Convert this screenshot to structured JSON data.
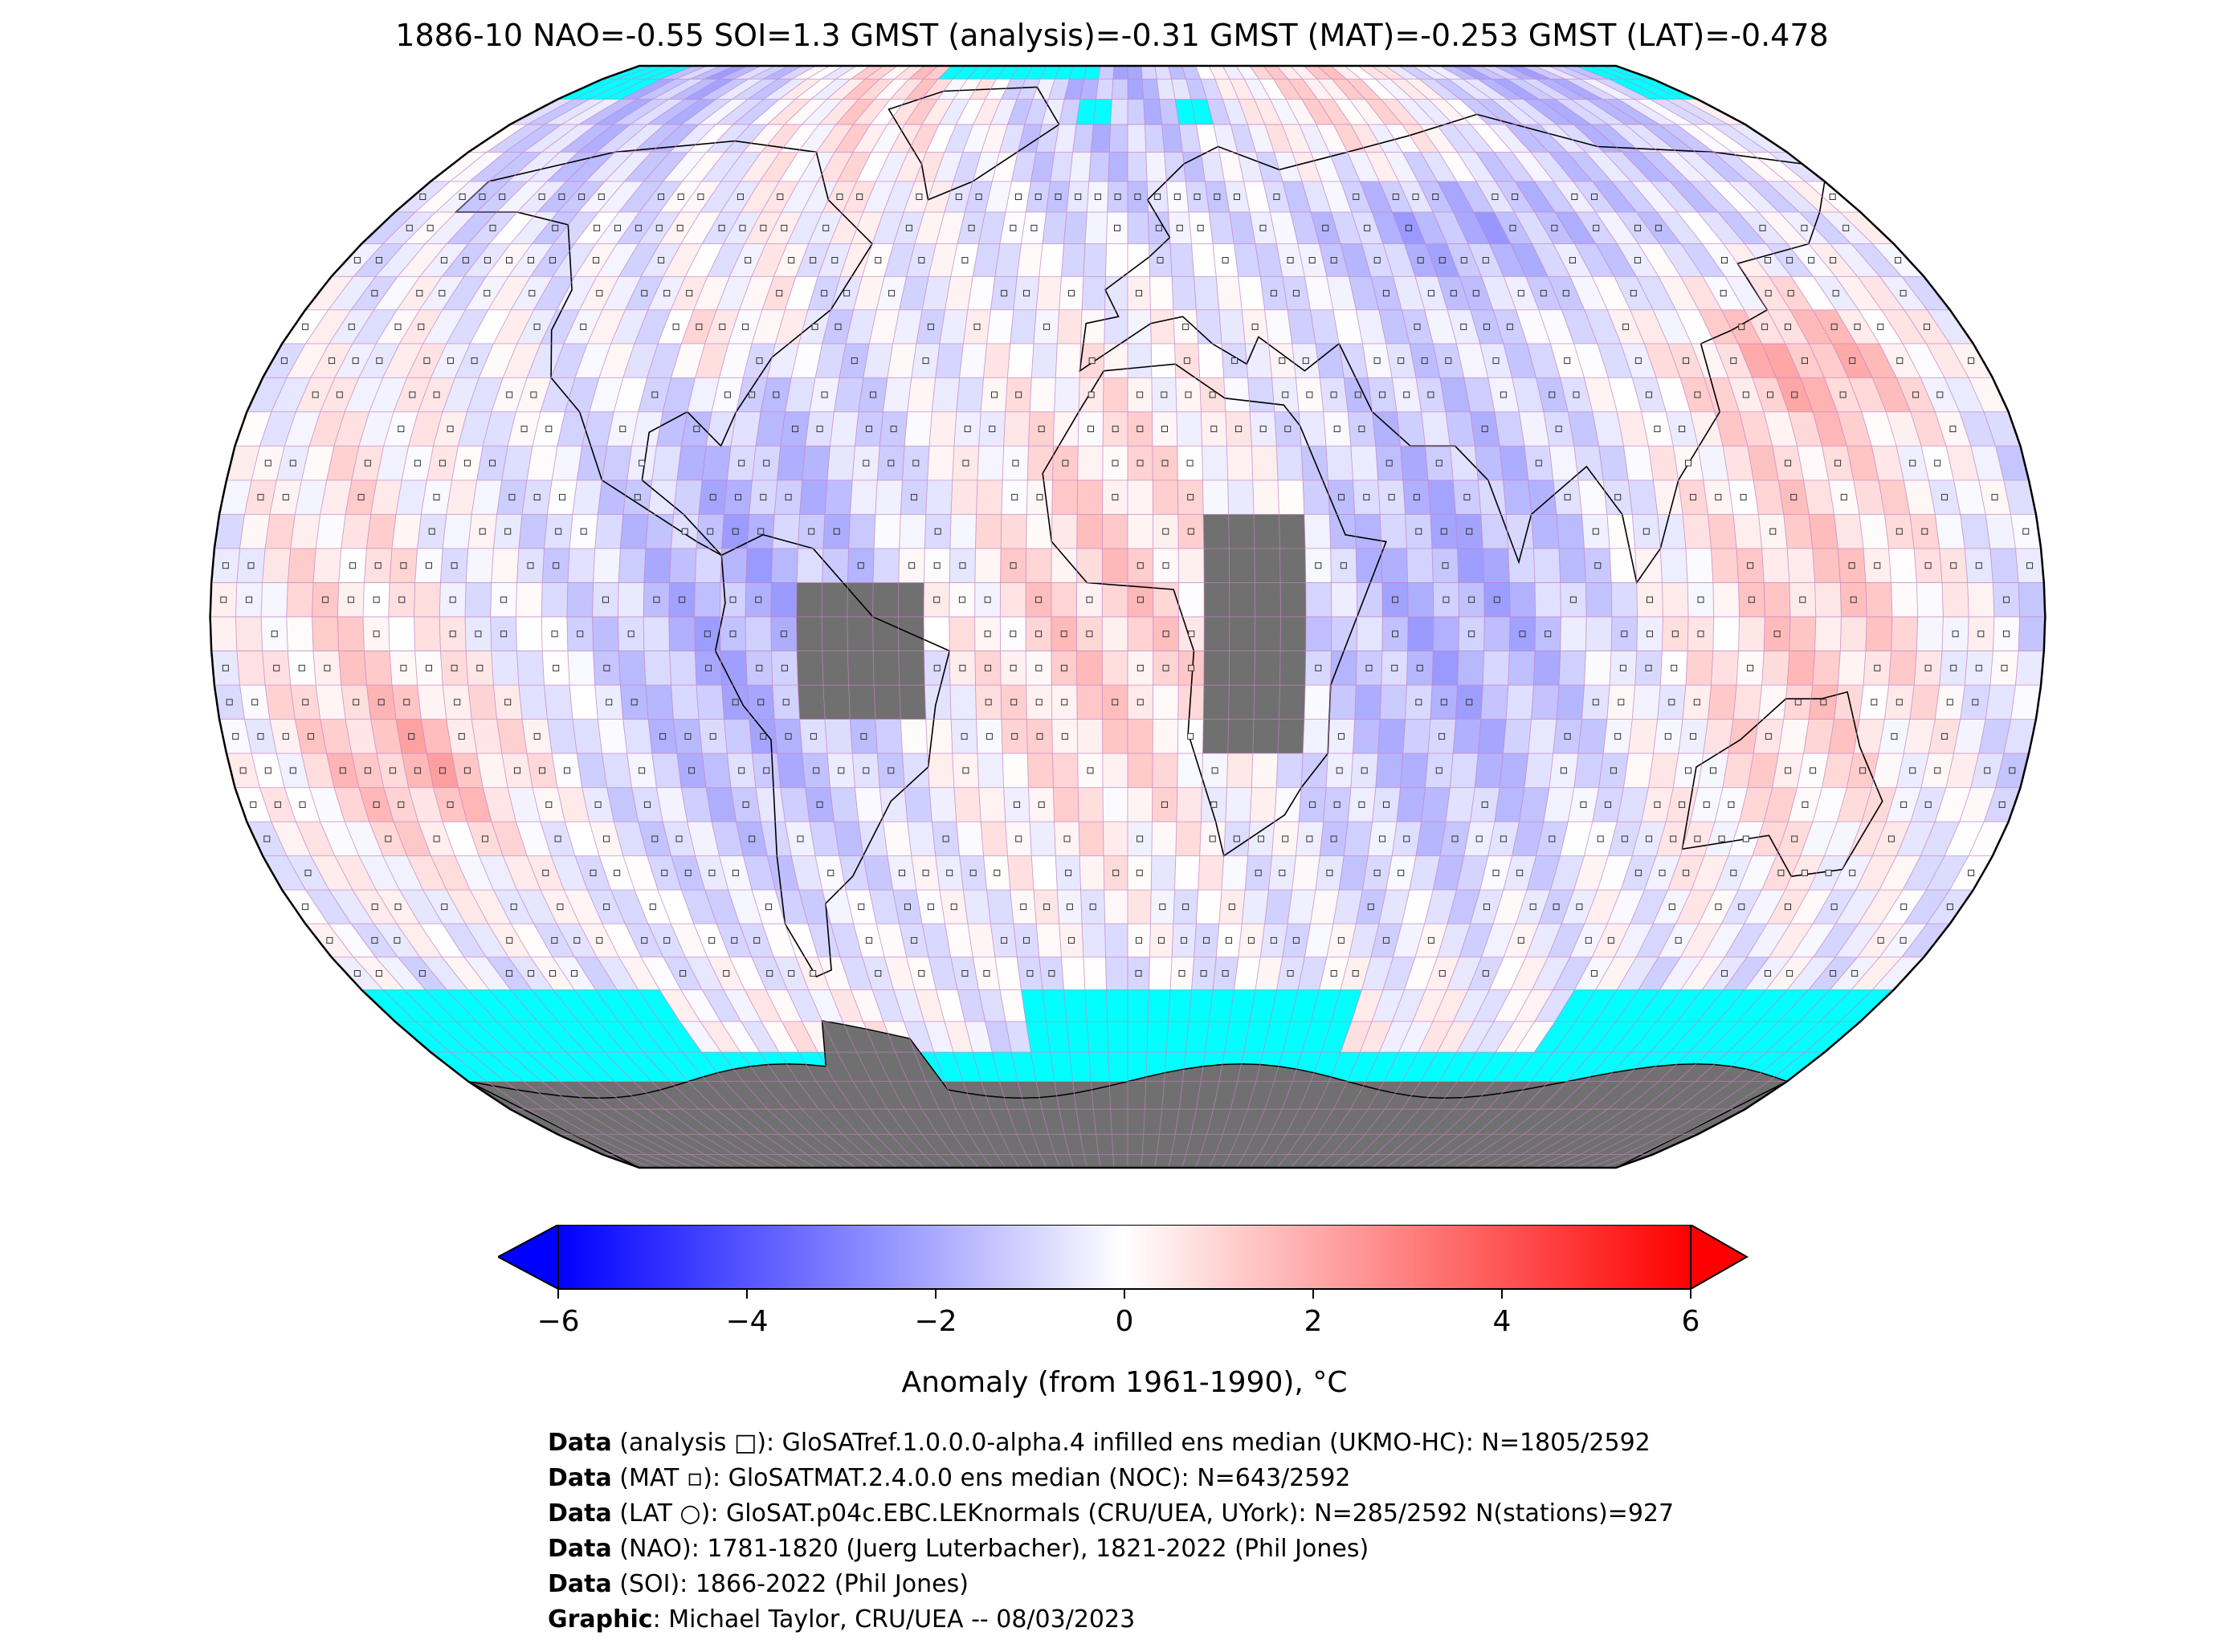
{
  "title": "1886-10 NAO=-0.55 SOI=1.3 GMST (analysis)=-0.31 GMST (MAT)=-0.253 GMST (LAT)=-0.478",
  "colors": {
    "ocean_nodata": "#00ffff",
    "land_nodata": "#707070",
    "cmap_min": "#0000ff",
    "cmap_mid": "#ffffff",
    "cmap_max": "#ff0000",
    "grid": "#c080c0",
    "coast": "#000000"
  },
  "colorbar": {
    "min": -6,
    "max": 6,
    "ticks": [
      "−6",
      "−4",
      "−2",
      "0",
      "2",
      "4",
      "6"
    ],
    "label": "Anomaly (from 1961-1990), °C",
    "extend": "both"
  },
  "map": {
    "projection": "Robinson",
    "grid_resolution_deg": 5
  },
  "footer": [
    {
      "bold": "Data",
      "text": " (analysis □): GloSATref.1.0.0.0-alpha.4 infilled ens median (UKMO-HC): N=1805/2592"
    },
    {
      "bold": "Data",
      "text": " (MAT ▫): GloSATMAT.2.4.0.0 ens median (NOC): N=643/2592"
    },
    {
      "bold": "Data",
      "text": " (LAT ○): GloSAT.p04c.EBC.LEKnormals (CRU/UEA, UYork): N=285/2592 N(stations)=927"
    },
    {
      "bold": "Data",
      "text": " (NAO): 1781-1820 (Juerg Luterbacher), 1821-2022 (Phil Jones)"
    },
    {
      "bold": "Data",
      "text": " (SOI): 1866-2022 (Phil Jones)"
    },
    {
      "bold": "Graphic",
      "text": ": Michael Taylor, CRU/UEA -- 08/03/2023"
    }
  ]
}
